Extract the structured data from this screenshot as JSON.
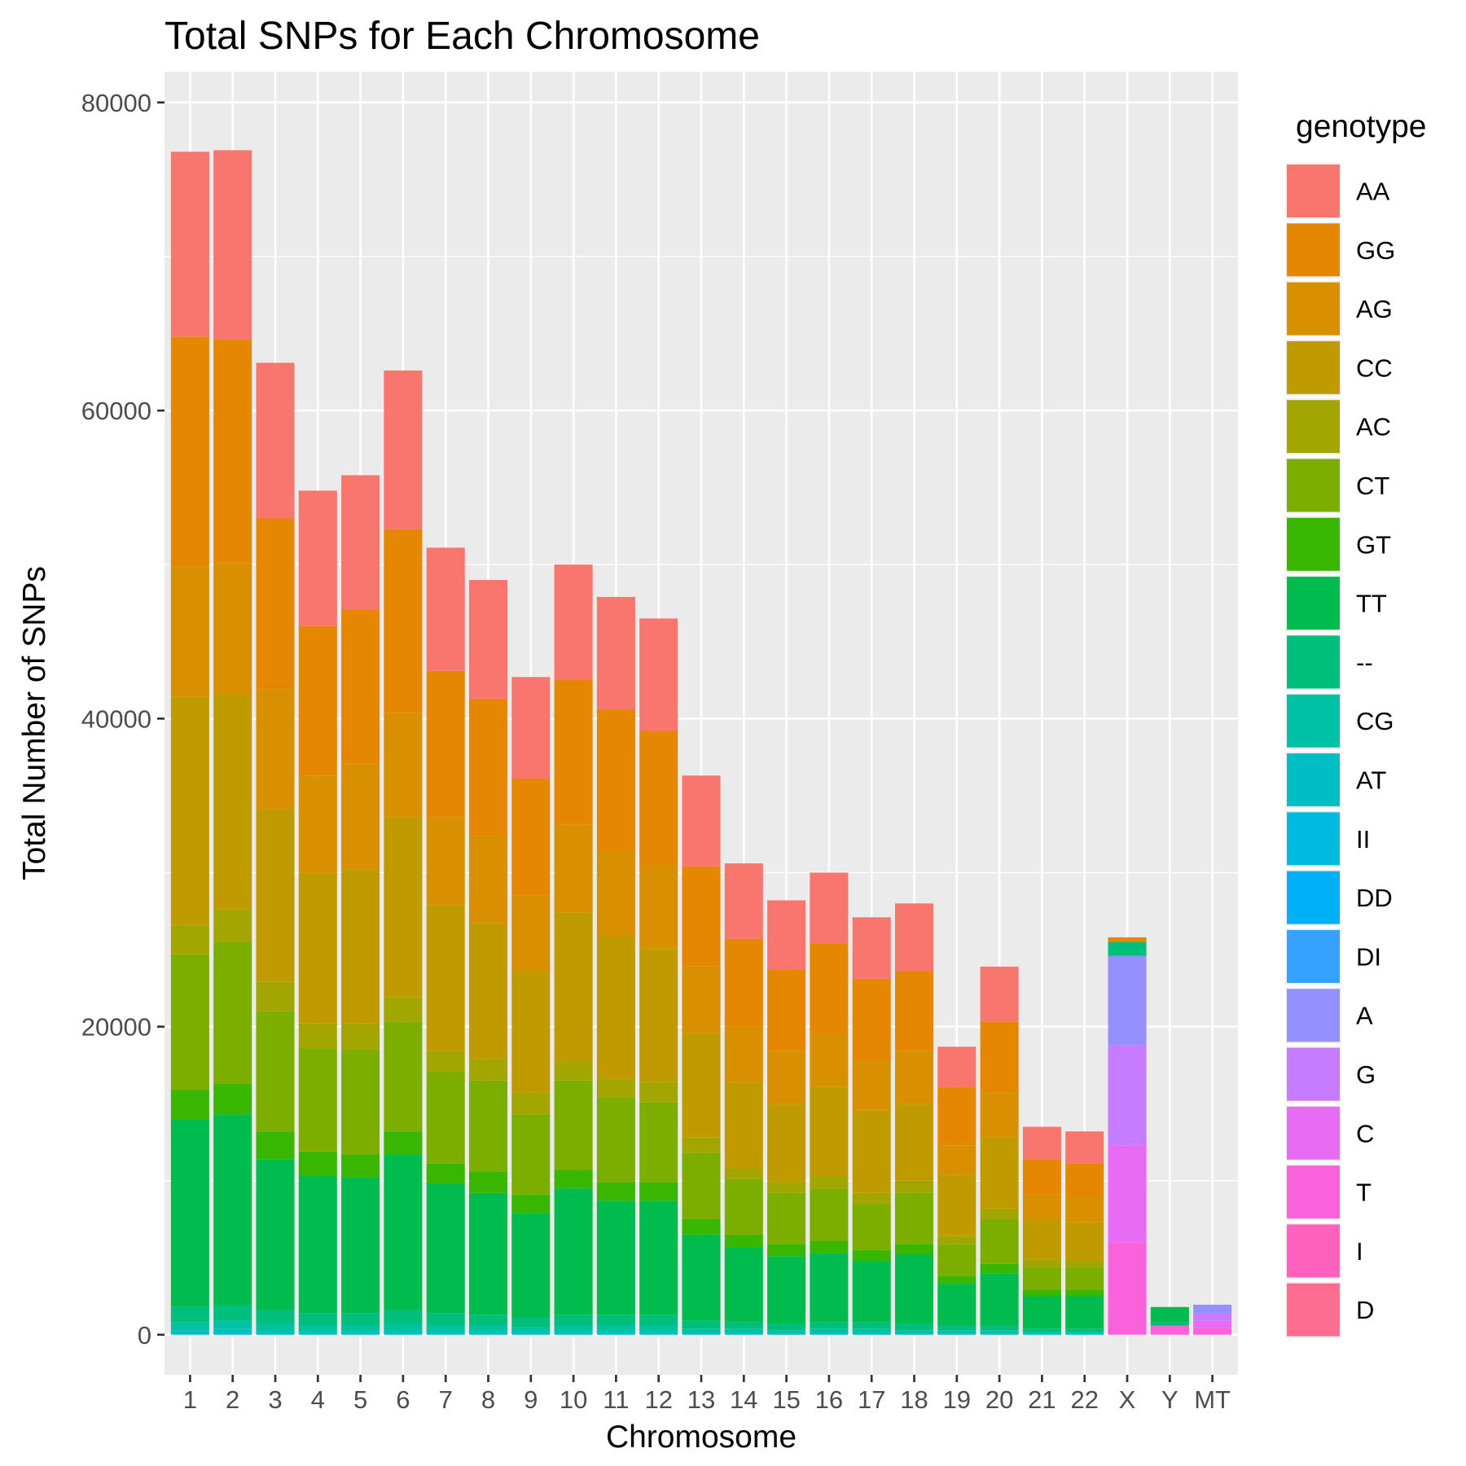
{
  "chart_data": {
    "type": "bar",
    "stacked": true,
    "title": "Total SNPs for Each Chromosome",
    "xlabel": "Chromosome",
    "ylabel": "Total Number of SNPs",
    "ylim": [
      -2600,
      82000
    ],
    "yticks": [
      0,
      20000,
      40000,
      60000,
      80000
    ],
    "grid": true,
    "legend_title": "genotype",
    "legend_position": "right",
    "categories": [
      "1",
      "2",
      "3",
      "4",
      "5",
      "6",
      "7",
      "8",
      "9",
      "10",
      "11",
      "12",
      "13",
      "14",
      "15",
      "16",
      "17",
      "18",
      "19",
      "20",
      "21",
      "22",
      "X",
      "Y",
      "MT"
    ],
    "series": [
      {
        "name": "AA",
        "color": "#F8766D",
        "values": [
          12000,
          12300,
          10100,
          8800,
          8700,
          10300,
          8000,
          7700,
          6600,
          7500,
          7300,
          7300,
          5900,
          4900,
          4500,
          4600,
          4000,
          4400,
          2600,
          3600,
          2100,
          2100,
          0,
          0,
          0
        ]
      },
      {
        "name": "GG",
        "color": "#E58700",
        "values": [
          14900,
          14500,
          11100,
          9700,
          10000,
          11900,
          9500,
          8900,
          7600,
          9400,
          9200,
          8700,
          6500,
          5700,
          5300,
          5900,
          5400,
          5200,
          3800,
          4600,
          2300,
          2200,
          300,
          0,
          0
        ]
      },
      {
        "name": "AG",
        "color": "#D89000",
        "values": [
          8500,
          8500,
          7800,
          6300,
          6900,
          6800,
          5700,
          5700,
          4900,
          5700,
          5500,
          5400,
          4300,
          3600,
          3400,
          3400,
          3100,
          3400,
          1900,
          2900,
          1600,
          1600,
          0,
          0,
          0
        ]
      },
      {
        "name": "CC",
        "color": "#C09B00",
        "values": [
          14800,
          14000,
          11200,
          9800,
          10000,
          11700,
          9500,
          8800,
          7900,
          9700,
          9300,
          8700,
          6800,
          5600,
          5100,
          5800,
          5400,
          5000,
          4000,
          4600,
          2600,
          2500,
          0,
          0,
          0
        ]
      },
      {
        "name": "AC",
        "color": "#A3A500",
        "values": [
          1900,
          2100,
          1900,
          1600,
          1700,
          1600,
          1300,
          1400,
          1400,
          1200,
          1200,
          1300,
          1000,
          700,
          700,
          800,
          700,
          800,
          500,
          700,
          500,
          400,
          0,
          0,
          0
        ]
      },
      {
        "name": "CT",
        "color": "#7CAE00",
        "values": [
          8800,
          9200,
          7800,
          6700,
          6800,
          7100,
          6000,
          5900,
          5200,
          5800,
          5500,
          5200,
          4300,
          3600,
          3300,
          3400,
          3000,
          3300,
          2100,
          2900,
          1500,
          1500,
          0,
          0,
          0
        ]
      },
      {
        "name": "GT",
        "color": "#39B600",
        "values": [
          1900,
          2000,
          1800,
          1600,
          1500,
          1500,
          1300,
          1400,
          1200,
          1200,
          1200,
          1200,
          1000,
          800,
          800,
          800,
          700,
          700,
          500,
          600,
          400,
          400,
          0,
          0,
          0
        ]
      },
      {
        "name": "TT",
        "color": "#00BB4E",
        "values": [
          12200,
          12400,
          9800,
          8900,
          8800,
          10100,
          8400,
          7900,
          6800,
          8200,
          7400,
          7400,
          5600,
          4900,
          4400,
          4500,
          4000,
          4500,
          2700,
          3400,
          2100,
          2100,
          0,
          1000,
          0
        ]
      },
      {
        "name": "--",
        "color": "#00BF7D",
        "values": [
          1000,
          1000,
          900,
          800,
          800,
          900,
          800,
          700,
          600,
          700,
          700,
          700,
          500,
          400,
          400,
          400,
          400,
          400,
          300,
          300,
          200,
          200,
          900,
          200,
          0
        ]
      },
      {
        "name": "CG",
        "color": "#00C1A3",
        "values": [
          500,
          500,
          500,
          400,
          400,
          500,
          400,
          400,
          300,
          400,
          400,
          400,
          300,
          300,
          200,
          300,
          300,
          200,
          200,
          200,
          100,
          100,
          0,
          0,
          0
        ]
      },
      {
        "name": "AT",
        "color": "#00BFC4",
        "values": [
          300,
          300,
          200,
          200,
          200,
          200,
          200,
          200,
          200,
          200,
          200,
          200,
          100,
          100,
          100,
          100,
          100,
          100,
          100,
          100,
          100,
          100,
          0,
          0,
          0
        ]
      },
      {
        "name": "II",
        "color": "#00BAE0",
        "values": [
          0,
          100,
          0,
          0,
          0,
          0,
          0,
          0,
          0,
          0,
          0,
          0,
          0,
          0,
          0,
          0,
          0,
          0,
          0,
          0,
          0,
          0,
          0,
          0,
          0
        ]
      },
      {
        "name": "DD",
        "color": "#00B0F6",
        "values": [
          0,
          0,
          0,
          0,
          0,
          0,
          0,
          0,
          0,
          0,
          0,
          0,
          0,
          0,
          0,
          0,
          0,
          0,
          0,
          0,
          0,
          0,
          0,
          0,
          0
        ]
      },
      {
        "name": "DI",
        "color": "#35A2FF",
        "values": [
          0,
          0,
          0,
          0,
          0,
          0,
          0,
          0,
          0,
          0,
          0,
          0,
          0,
          0,
          0,
          0,
          0,
          0,
          0,
          0,
          0,
          0,
          0,
          0,
          0
        ]
      },
      {
        "name": "A",
        "color": "#9590FF",
        "values": [
          0,
          0,
          0,
          0,
          0,
          0,
          0,
          0,
          0,
          0,
          0,
          0,
          0,
          0,
          0,
          0,
          0,
          0,
          0,
          0,
          0,
          0,
          5800,
          0,
          550
        ]
      },
      {
        "name": "G",
        "color": "#C77CFF",
        "values": [
          0,
          0,
          0,
          0,
          0,
          0,
          0,
          0,
          0,
          0,
          0,
          0,
          0,
          0,
          0,
          0,
          0,
          0,
          0,
          0,
          0,
          0,
          6500,
          0,
          500
        ]
      },
      {
        "name": "C",
        "color": "#E76BF3",
        "values": [
          0,
          0,
          0,
          0,
          0,
          0,
          0,
          0,
          0,
          0,
          0,
          0,
          0,
          0,
          0,
          0,
          0,
          0,
          0,
          0,
          0,
          0,
          6300,
          0,
          450
        ]
      },
      {
        "name": "T",
        "color": "#FA62DB",
        "values": [
          0,
          0,
          0,
          0,
          0,
          0,
          0,
          0,
          0,
          0,
          0,
          0,
          0,
          0,
          0,
          0,
          0,
          0,
          0,
          0,
          0,
          0,
          6000,
          600,
          450
        ]
      },
      {
        "name": "I",
        "color": "#FF62BC",
        "values": [
          0,
          0,
          0,
          0,
          0,
          0,
          0,
          0,
          0,
          0,
          0,
          0,
          0,
          0,
          0,
          0,
          0,
          0,
          0,
          0,
          0,
          0,
          0,
          0,
          0
        ]
      },
      {
        "name": "D",
        "color": "#FF6C91",
        "values": [
          0,
          0,
          0,
          0,
          0,
          0,
          0,
          0,
          0,
          0,
          0,
          0,
          0,
          0,
          0,
          0,
          0,
          0,
          0,
          0,
          0,
          0,
          0,
          0,
          0
        ]
      }
    ]
  }
}
